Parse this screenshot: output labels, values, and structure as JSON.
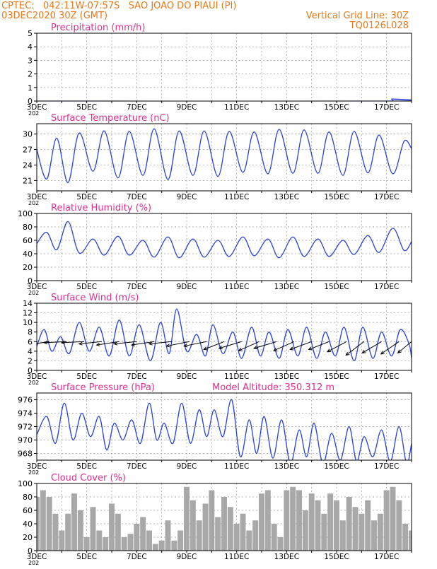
{
  "header": {
    "line1": "CPTEC:   042:11W-07:57S   SAO JOAO DO PIAUI (PI)",
    "line2": "03DEC2020 30Z (GMT)",
    "grid_note": "Vertical Grid Line: 30Z",
    "run_id": "TQ0126L028"
  },
  "colors": {
    "header": "#e87818",
    "title": "#e0308c",
    "line": "#2840d8",
    "arrow": "#000000",
    "cloud": "#a8a8a8",
    "grid": "#999999"
  },
  "x_ticks": [
    "3DEC",
    "5DEC",
    "7DEC",
    "9DEC",
    "11DEC",
    "13DEC",
    "15DEC",
    "17DEC"
  ],
  "x_tick_year": "202",
  "chart_data": [
    {
      "id": "precip",
      "type": "line",
      "title": "Precipitation (mm/h)",
      "ylim": [
        0,
        5
      ],
      "yticks": [
        0,
        1,
        2,
        3,
        4,
        5
      ],
      "x": [
        3,
        17.1,
        17.2,
        17.3,
        18
      ],
      "y": [
        0,
        0,
        0.15,
        0,
        0
      ]
    },
    {
      "id": "temp",
      "type": "line",
      "title": "Surface Temperature (nC)",
      "ylim": [
        19,
        32
      ],
      "yticks": [
        21,
        24,
        27,
        30
      ],
      "x": [
        3,
        3.4,
        3.8,
        4.25,
        4.7,
        5.25,
        5.7,
        6.25,
        6.7,
        7.25,
        7.7,
        8.25,
        8.7,
        9.25,
        9.7,
        10.25,
        10.7,
        11.25,
        11.7,
        12.25,
        12.7,
        13.25,
        13.7,
        14.25,
        14.7,
        15.25,
        15.7,
        16.25,
        16.7,
        17.25,
        17.7,
        18
      ],
      "y": [
        27,
        21.3,
        29.2,
        20.6,
        30.2,
        22.8,
        30.6,
        21.5,
        30.5,
        22.0,
        31.0,
        21.2,
        30.6,
        22.0,
        30.6,
        21.8,
        30.5,
        22.6,
        30.4,
        22.3,
        30.9,
        22.4,
        30.8,
        22.4,
        30.4,
        22.0,
        30.5,
        22.5,
        29.8,
        22.3,
        28.6,
        27.2
      ]
    },
    {
      "id": "rh",
      "type": "line",
      "title": "Relative Humidity (%)",
      "ylim": [
        0,
        100
      ],
      "yticks": [
        0,
        20,
        40,
        60,
        80,
        100
      ],
      "x": [
        3,
        3.4,
        3.8,
        4.25,
        4.7,
        5.25,
        5.7,
        6.25,
        6.7,
        7.25,
        7.7,
        8.25,
        8.7,
        9.25,
        9.7,
        10.25,
        10.7,
        11.25,
        11.7,
        12.25,
        12.7,
        13.25,
        13.7,
        14.25,
        14.7,
        15.25,
        15.7,
        16.25,
        16.7,
        17.25,
        17.7,
        18
      ],
      "y": [
        55,
        72,
        46,
        88,
        41,
        62,
        38,
        66,
        38,
        60,
        35,
        65,
        34,
        62,
        35,
        60,
        36,
        65,
        37,
        62,
        34,
        65,
        36,
        62,
        36,
        60,
        39,
        67,
        42,
        78,
        45,
        58
      ]
    },
    {
      "id": "wind",
      "type": "line",
      "title": "Surface Wind (m/s)",
      "ylim": [
        0,
        14
      ],
      "yticks": [
        0,
        2,
        4,
        6,
        8,
        10,
        12,
        14
      ],
      "x": [
        3,
        3.3,
        3.6,
        3.95,
        4.3,
        4.7,
        5.1,
        5.5,
        5.9,
        6.3,
        6.7,
        7.1,
        7.55,
        7.95,
        8.3,
        8.6,
        9.0,
        9.4,
        9.75,
        10.05,
        10.45,
        10.85,
        11.2,
        11.6,
        11.95,
        12.3,
        12.7,
        13.05,
        13.45,
        13.8,
        14.2,
        14.55,
        14.95,
        15.3,
        15.7,
        16.05,
        16.45,
        16.8,
        17.2,
        17.55,
        17.9,
        18
      ],
      "y": [
        5,
        8.5,
        4,
        7,
        3.5,
        10,
        4,
        9,
        3,
        10.5,
        3,
        9.5,
        2,
        10,
        3.5,
        12.8,
        4,
        7.5,
        3,
        9.5,
        3.5,
        8,
        2.5,
        9,
        3,
        8,
        2.5,
        8.5,
        3,
        9,
        2.5,
        8,
        3,
        9,
        2,
        9,
        2.5,
        8,
        3,
        8.5,
        5.5,
        2.5
      ],
      "wind_vectors": [
        {
          "x": 3.5,
          "u": -1.0,
          "v": -0.15
        },
        {
          "x": 4.2,
          "u": -1.0,
          "v": -0.05
        },
        {
          "x": 4.9,
          "u": -1.0,
          "v": -0.05
        },
        {
          "x": 5.6,
          "u": -1.0,
          "v": -0.1
        },
        {
          "x": 6.3,
          "u": -1.0,
          "v": -0.15
        },
        {
          "x": 7.0,
          "u": -1.0,
          "v": -0.1
        },
        {
          "x": 7.7,
          "u": -1.0,
          "v": -0.15
        },
        {
          "x": 8.4,
          "u": -1.0,
          "v": -0.1
        },
        {
          "x": 9.1,
          "u": -1.0,
          "v": -0.2
        },
        {
          "x": 9.8,
          "u": -1.0,
          "v": -0.2
        },
        {
          "x": 10.5,
          "u": -0.9,
          "v": -0.35
        },
        {
          "x": 11.2,
          "u": -1.0,
          "v": -0.3
        },
        {
          "x": 11.9,
          "u": -0.9,
          "v": -0.4
        },
        {
          "x": 12.6,
          "u": -1.0,
          "v": -0.3
        },
        {
          "x": 13.3,
          "u": -0.9,
          "v": -0.4
        },
        {
          "x": 14.0,
          "u": -0.95,
          "v": -0.35
        },
        {
          "x": 14.7,
          "u": -0.9,
          "v": -0.35
        },
        {
          "x": 15.4,
          "u": -0.85,
          "v": -0.45
        },
        {
          "x": 16.1,
          "u": -0.8,
          "v": -0.6
        },
        {
          "x": 16.8,
          "u": -0.85,
          "v": -0.5
        },
        {
          "x": 17.5,
          "u": -0.8,
          "v": -0.55
        },
        {
          "x": 18.0,
          "u": -0.6,
          "v": -0.5
        }
      ]
    },
    {
      "id": "pressure",
      "type": "line",
      "title": "Surface Pressure (hPa)",
      "subtitle": "Model Altitude: 350.312 m",
      "ylim": [
        967,
        977
      ],
      "yticks": [
        968,
        970,
        972,
        974,
        976
      ],
      "x": [
        3,
        3.4,
        3.75,
        4.1,
        4.45,
        4.8,
        5.15,
        5.5,
        5.8,
        6.1,
        6.45,
        6.8,
        7.15,
        7.5,
        7.8,
        8.1,
        8.45,
        8.8,
        9.15,
        9.5,
        9.8,
        10.1,
        10.45,
        10.8,
        11.15,
        11.5,
        11.8,
        12.1,
        12.45,
        12.8,
        13.15,
        13.5,
        13.8,
        14.1,
        14.45,
        14.8,
        15.15,
        15.5,
        15.8,
        16.1,
        16.45,
        16.8,
        17.15,
        17.5,
        17.8,
        18
      ],
      "y": [
        970.8,
        973.5,
        969.5,
        975.5,
        970,
        974,
        970.5,
        973.5,
        968.5,
        972.5,
        970,
        973,
        969.5,
        975.5,
        970,
        972.5,
        969.5,
        975.5,
        969.5,
        974.5,
        970.5,
        974.5,
        970.5,
        976,
        967.5,
        973,
        968,
        973.5,
        967.3,
        973,
        966.5,
        971.5,
        967.5,
        972.5,
        966.5,
        971,
        967,
        972,
        966.8,
        970.5,
        967.5,
        971.5,
        966.8,
        972,
        966.5,
        969.5
      ]
    },
    {
      "id": "cloud",
      "type": "bar",
      "title": "Cloud Cover (%)",
      "ylim": [
        0,
        100
      ],
      "yticks": [
        0,
        20,
        40,
        60,
        80,
        100
      ],
      "x": [
        3.0,
        3.25,
        3.5,
        3.75,
        4.0,
        4.25,
        4.5,
        4.75,
        5.0,
        5.25,
        5.5,
        5.75,
        6.0,
        6.25,
        6.5,
        6.75,
        7.0,
        7.25,
        7.5,
        7.75,
        8.0,
        8.25,
        8.5,
        8.75,
        9.0,
        9.25,
        9.5,
        9.75,
        10.0,
        10.25,
        10.5,
        10.75,
        11.0,
        11.25,
        11.5,
        11.75,
        12.0,
        12.25,
        12.5,
        12.75,
        13.0,
        13.25,
        13.5,
        13.75,
        14.0,
        14.25,
        14.5,
        14.75,
        15.0,
        15.25,
        15.5,
        15.75,
        16.0,
        16.25,
        16.5,
        16.75,
        17.0,
        17.25,
        17.5,
        17.75,
        18.0
      ],
      "values": [
        80,
        90,
        80,
        55,
        30,
        55,
        85,
        60,
        20,
        65,
        30,
        20,
        70,
        55,
        20,
        25,
        40,
        50,
        30,
        10,
        15,
        45,
        15,
        30,
        95,
        75,
        45,
        70,
        90,
        50,
        80,
        65,
        40,
        55,
        30,
        45,
        85,
        90,
        40,
        20,
        90,
        95,
        90,
        60,
        85,
        75,
        55,
        85,
        75,
        45,
        80,
        65,
        55,
        75,
        45,
        55,
        90,
        95,
        75,
        40,
        30
      ]
    }
  ]
}
